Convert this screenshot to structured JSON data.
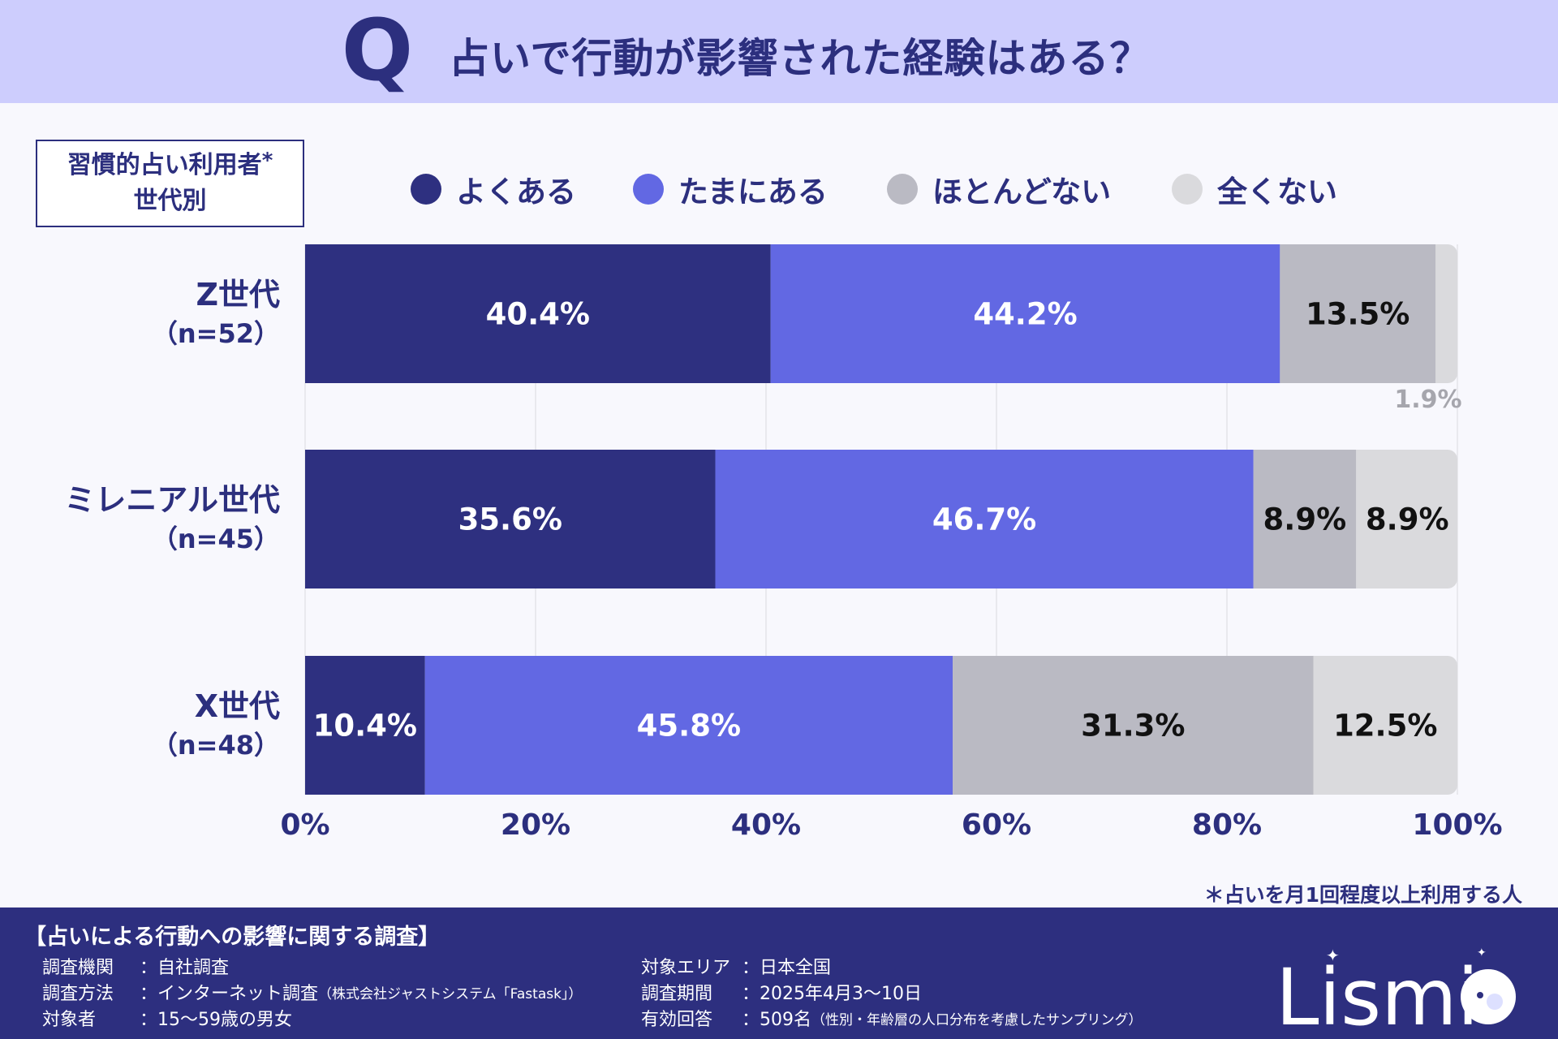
{
  "header": {
    "title": "占いで行動が影響された経験はある？",
    "q_letter": "Q"
  },
  "group_box": {
    "line1": "習慣的占い利用者",
    "asterisk": "*",
    "line2": "世代別"
  },
  "colors": {
    "header_bg": "#cdcdfd",
    "navy": "#2c2f7e",
    "often": "#2e3080",
    "sometimes": "#6268e3",
    "rarely": "#babac3",
    "never": "#dadadd"
  },
  "chart_data": {
    "type": "bar",
    "orientation": "horizontal",
    "stacked": true,
    "categories": [
      {
        "name": "Z世代",
        "n": "（n=52）"
      },
      {
        "name": "ミレニアル世代",
        "n": "（n=45）"
      },
      {
        "name": "X世代",
        "n": "（n=48）"
      }
    ],
    "series": [
      {
        "name": "よくある",
        "values": [
          40.4,
          35.6,
          10.4
        ],
        "labels": [
          "40.4%",
          "35.6%",
          "10.4%"
        ]
      },
      {
        "name": "たまにある",
        "values": [
          44.2,
          46.7,
          45.8
        ],
        "labels": [
          "44.2%",
          "46.7%",
          "45.8%"
        ]
      },
      {
        "name": "ほとんどない",
        "values": [
          13.5,
          8.9,
          31.3
        ],
        "labels": [
          "13.5%",
          "8.9%",
          "31.3%"
        ]
      },
      {
        "name": "全くない",
        "values": [
          1.9,
          8.9,
          12.5
        ],
        "labels": [
          "1.9%",
          "8.9%",
          "12.5%"
        ]
      }
    ],
    "xlim": [
      0,
      100
    ],
    "x_ticks": [
      "0%",
      "20%",
      "40%",
      "60%",
      "80%",
      "100%"
    ],
    "grid": true,
    "legend_position": "top"
  },
  "note": "＊占いを月1回程度以上利用する人",
  "footer": {
    "survey_title": "【占いによる行動への影響に関する調査】",
    "left": [
      {
        "label": "調査機関",
        "value": "：自社調査",
        "sub": ""
      },
      {
        "label": "調査方法",
        "value": "：インターネット調査",
        "sub": "（株式会社ジャストシステム「Fastask」）"
      },
      {
        "label": "対象者",
        "value": "：15～59歳の男女",
        "sub": ""
      }
    ],
    "right": [
      {
        "label": "対象エリア",
        "value": "：日本全国",
        "sub": ""
      },
      {
        "label": "調査期間",
        "value": "：2025年4月3～10日",
        "sub": ""
      },
      {
        "label": "有効回答",
        "value": "：509名",
        "sub": "（性別・年齢層の人口分布を考慮したサンプリング）"
      }
    ],
    "logo_text": "Lismi"
  }
}
